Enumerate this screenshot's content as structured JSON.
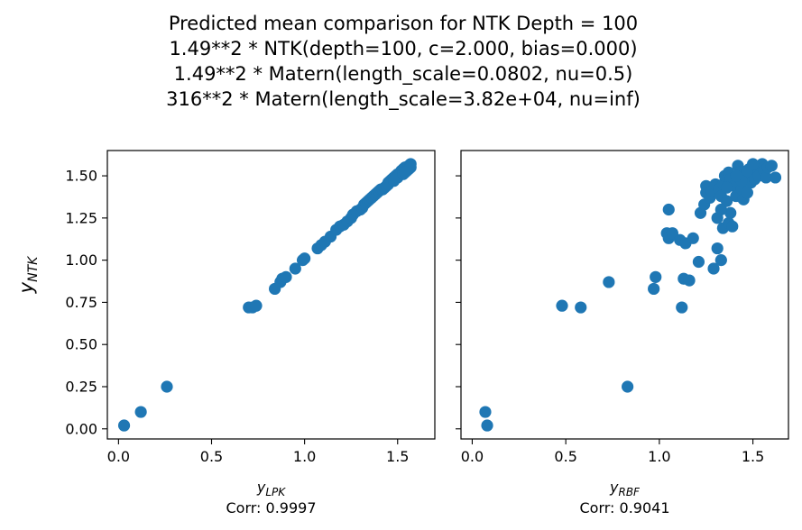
{
  "figure": {
    "title_lines": [
      "Predicted mean comparison for NTK Depth = 100",
      "1.49**2 * NTK(depth=100, c=2.000, bias=0.000)",
      "1.49**2 * Matern(length_scale=0.0802, nu=0.5)",
      "316**2 * Matern(length_scale=3.82e+04, nu=inf)"
    ],
    "ylabel_main": "y",
    "ylabel_sub": "NTK"
  },
  "chart_data": [
    {
      "type": "scatter",
      "xlabel_main": "y",
      "xlabel_sub": "LPK",
      "corr_label": "Corr: 0.9997",
      "color": "#1f77b4",
      "xlim": [
        -0.06,
        1.7
      ],
      "ylim": [
        -0.06,
        1.65
      ],
      "xticks": [
        0.0,
        0.5,
        1.0,
        1.5
      ],
      "yticks": [
        0.0,
        0.25,
        0.5,
        0.75,
        1.0,
        1.25,
        1.5
      ],
      "xtick_labels": [
        "0.0",
        "0.5",
        "1.0",
        "1.5"
      ],
      "ytick_labels": [
        "0.00",
        "0.25",
        "0.50",
        "0.75",
        "1.00",
        "1.25",
        "1.50"
      ],
      "points": [
        [
          0.03,
          0.02
        ],
        [
          0.12,
          0.1
        ],
        [
          0.26,
          0.25
        ],
        [
          0.7,
          0.72
        ],
        [
          0.72,
          0.72
        ],
        [
          0.74,
          0.73
        ],
        [
          0.84,
          0.83
        ],
        [
          0.87,
          0.87
        ],
        [
          0.88,
          0.89
        ],
        [
          0.9,
          0.9
        ],
        [
          0.95,
          0.95
        ],
        [
          0.99,
          1.0
        ],
        [
          1.0,
          1.01
        ],
        [
          1.07,
          1.07
        ],
        [
          1.09,
          1.09
        ],
        [
          1.11,
          1.11
        ],
        [
          1.14,
          1.14
        ],
        [
          1.17,
          1.18
        ],
        [
          1.19,
          1.2
        ],
        [
          1.21,
          1.21
        ],
        [
          1.23,
          1.23
        ],
        [
          1.25,
          1.25
        ],
        [
          1.26,
          1.27
        ],
        [
          1.28,
          1.29
        ],
        [
          1.3,
          1.3
        ],
        [
          1.31,
          1.31
        ],
        [
          1.32,
          1.33
        ],
        [
          1.33,
          1.34
        ],
        [
          1.34,
          1.35
        ],
        [
          1.35,
          1.36
        ],
        [
          1.36,
          1.37
        ],
        [
          1.37,
          1.38
        ],
        [
          1.38,
          1.39
        ],
        [
          1.39,
          1.4
        ],
        [
          1.4,
          1.41
        ],
        [
          1.41,
          1.42
        ],
        [
          1.42,
          1.42
        ],
        [
          1.43,
          1.43
        ],
        [
          1.44,
          1.44
        ],
        [
          1.45,
          1.46
        ],
        [
          1.46,
          1.47
        ],
        [
          1.47,
          1.48
        ],
        [
          1.48,
          1.49
        ],
        [
          1.49,
          1.5
        ],
        [
          1.5,
          1.51
        ],
        [
          1.51,
          1.51
        ],
        [
          1.52,
          1.52
        ],
        [
          1.52,
          1.53
        ],
        [
          1.53,
          1.54
        ],
        [
          1.54,
          1.55
        ],
        [
          1.55,
          1.55
        ],
        [
          1.56,
          1.56
        ],
        [
          1.57,
          1.57
        ],
        [
          1.45,
          1.45
        ],
        [
          1.48,
          1.47
        ],
        [
          1.5,
          1.49
        ],
        [
          1.53,
          1.51
        ],
        [
          1.55,
          1.53
        ],
        [
          1.56,
          1.54
        ],
        [
          1.57,
          1.55
        ],
        [
          1.54,
          1.52
        ]
      ]
    },
    {
      "type": "scatter",
      "xlabel_main": "y",
      "xlabel_sub": "RBF",
      "corr_label": "Corr: 0.9041",
      "color": "#1f77b4",
      "xlim": [
        -0.06,
        1.69
      ],
      "ylim": [
        -0.06,
        1.65
      ],
      "xticks": [
        0.0,
        0.5,
        1.0,
        1.5
      ],
      "yticks": [
        0.0,
        0.25,
        0.5,
        0.75,
        1.0,
        1.25,
        1.5
      ],
      "xtick_labels": [
        "0.0",
        "0.5",
        "1.0",
        "1.5"
      ],
      "ytick_labels": [],
      "points": [
        [
          0.07,
          0.1
        ],
        [
          0.08,
          0.02
        ],
        [
          0.48,
          0.73
        ],
        [
          0.58,
          0.72
        ],
        [
          0.73,
          0.87
        ],
        [
          0.83,
          0.25
        ],
        [
          0.97,
          0.83
        ],
        [
          0.98,
          0.9
        ],
        [
          1.04,
          1.16
        ],
        [
          1.05,
          1.3
        ],
        [
          1.05,
          1.13
        ],
        [
          1.07,
          1.16
        ],
        [
          1.11,
          1.12
        ],
        [
          1.12,
          0.72
        ],
        [
          1.13,
          0.89
        ],
        [
          1.14,
          1.1
        ],
        [
          1.16,
          0.88
        ],
        [
          1.18,
          1.13
        ],
        [
          1.21,
          0.99
        ],
        [
          1.22,
          1.28
        ],
        [
          1.24,
          1.33
        ],
        [
          1.25,
          1.44
        ],
        [
          1.25,
          1.4
        ],
        [
          1.27,
          1.37
        ],
        [
          1.28,
          1.41
        ],
        [
          1.29,
          0.95
        ],
        [
          1.3,
          1.45
        ],
        [
          1.31,
          1.07
        ],
        [
          1.31,
          1.25
        ],
        [
          1.32,
          1.42
        ],
        [
          1.33,
          1.0
        ],
        [
          1.33,
          1.38
        ],
        [
          1.34,
          1.19
        ],
        [
          1.34,
          1.45
        ],
        [
          1.35,
          1.5
        ],
        [
          1.36,
          1.35
        ],
        [
          1.37,
          1.52
        ],
        [
          1.37,
          1.22
        ],
        [
          1.38,
          1.28
        ],
        [
          1.38,
          1.48
        ],
        [
          1.4,
          1.44
        ],
        [
          1.41,
          1.38
        ],
        [
          1.42,
          1.56
        ],
        [
          1.43,
          1.52
        ],
        [
          1.44,
          1.42
        ],
        [
          1.45,
          1.36
        ],
        [
          1.46,
          1.5
        ],
        [
          1.47,
          1.4
        ],
        [
          1.48,
          1.54
        ],
        [
          1.49,
          1.46
        ],
        [
          1.5,
          1.52
        ],
        [
          1.51,
          1.48
        ],
        [
          1.52,
          1.55
        ],
        [
          1.53,
          1.5
        ],
        [
          1.54,
          1.56
        ],
        [
          1.55,
          1.57
        ],
        [
          1.56,
          1.53
        ],
        [
          1.57,
          1.49
        ],
        [
          1.58,
          1.55
        ],
        [
          1.6,
          1.56
        ],
        [
          1.62,
          1.49
        ],
        [
          1.39,
          1.2
        ],
        [
          1.44,
          1.47
        ],
        [
          1.47,
          1.53
        ],
        [
          1.33,
          1.3
        ],
        [
          1.36,
          1.43
        ],
        [
          1.41,
          1.5
        ],
        [
          1.5,
          1.57
        ]
      ]
    }
  ]
}
